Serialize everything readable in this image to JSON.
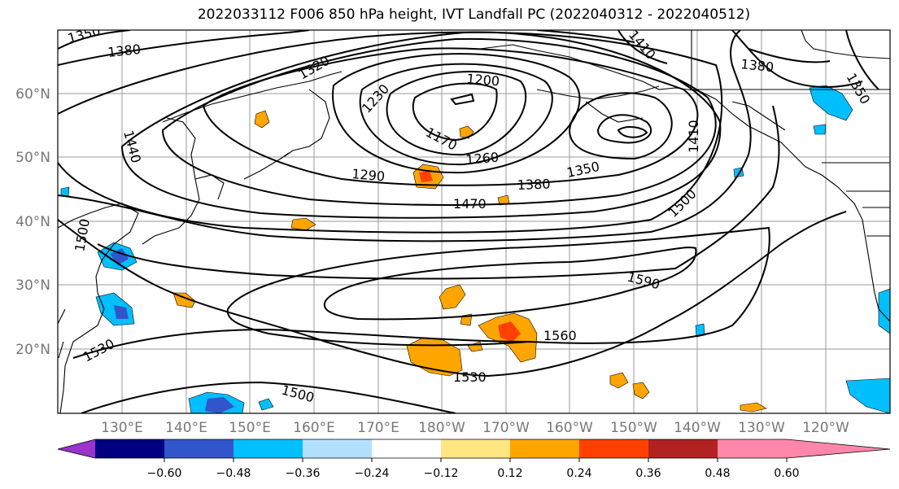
{
  "title": "2022033112 F006 850 hPa height, IVT Landfall PC (2022040312 - 2022040512)",
  "lat_labels": [
    "60°N",
    "50°N",
    "40°N",
    "30°N",
    "20°N"
  ],
  "lon_labels": [
    "130°E",
    "140°E",
    "150°E",
    "160°E",
    "170°E",
    "180°W",
    "170°W",
    "160°W",
    "150°W",
    "140°W",
    "130°W",
    "120°W"
  ],
  "contour_labels": [
    "1350",
    "1380",
    "1410",
    "1380",
    "1350",
    "1320",
    "1200",
    "1230",
    "1170",
    "1260",
    "1290",
    "1380",
    "1350",
    "1410",
    "1440",
    "1470",
    "1500",
    "1590",
    "1560",
    "1530",
    "1530",
    "1500",
    "1500"
  ],
  "colorbar": {
    "ticks": [
      "−0.60",
      "−0.48",
      "−0.36",
      "−0.24",
      "−0.12",
      "0.12",
      "0.24",
      "0.36",
      "0.48",
      "0.60"
    ],
    "colors": [
      "#9933cc",
      "#000080",
      "#3355cc",
      "#00bfff",
      "#b3e0ff",
      "#ffffff",
      "#ffe680",
      "#ffa500",
      "#ff4000",
      "#b22222",
      "#ff88aa"
    ]
  },
  "colors": {
    "positive_shade": "#ffa500",
    "negative_shade": "#00bfff",
    "contour": "#000000"
  }
}
